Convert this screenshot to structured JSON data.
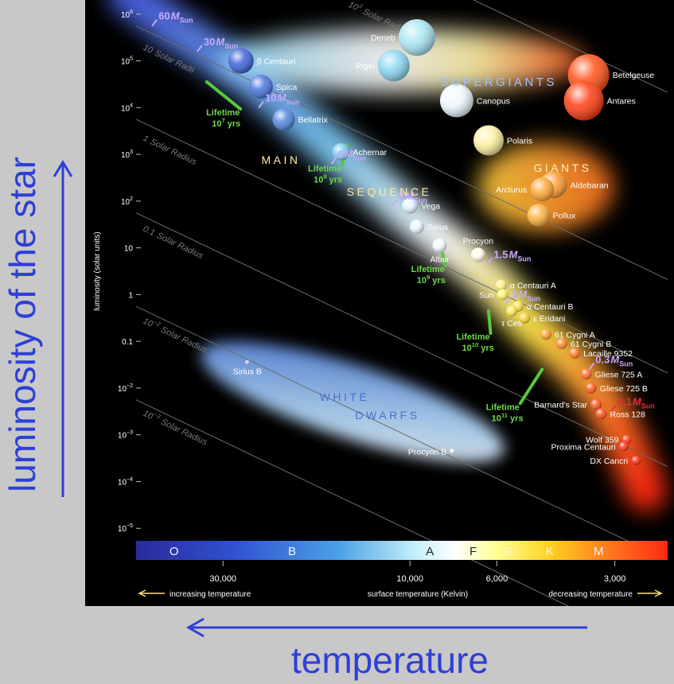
{
  "captions": {
    "y": "luminosity of the star",
    "x": "temperature"
  },
  "axis": {
    "ylabel": "luminosity (solar units)",
    "xlabel": "surface temperature (Kelvin)",
    "x_left_note": "increasing temperature",
    "x_right_note": "decreasing temperature",
    "y_ticks": [
      {
        "mant": "10",
        "exp": "6",
        "logL": 6
      },
      {
        "mant": "10",
        "exp": "5",
        "logL": 5
      },
      {
        "mant": "10",
        "exp": "4",
        "logL": 4
      },
      {
        "mant": "10",
        "exp": "3",
        "logL": 3
      },
      {
        "mant": "10",
        "exp": "2",
        "logL": 2
      },
      {
        "mant": "10",
        "exp": "",
        "logL": 1
      },
      {
        "mant": "1",
        "exp": "",
        "logL": 0
      },
      {
        "mant": "0.1",
        "exp": "",
        "logL": -1
      },
      {
        "mant": "10",
        "exp": "−2",
        "logL": -2
      },
      {
        "mant": "10",
        "exp": "−3",
        "logL": -3
      },
      {
        "mant": "10",
        "exp": "−4",
        "logL": -4
      },
      {
        "mant": "10",
        "exp": "−5",
        "logL": -5
      }
    ],
    "x_ticks": [
      {
        "label": "30,000",
        "T": 30000
      },
      {
        "label": "10,000",
        "T": 10000
      },
      {
        "label": "6,000",
        "T": 6000
      },
      {
        "label": "3,000",
        "T": 3000
      }
    ],
    "spectral": [
      {
        "label": "O",
        "T": 40000
      },
      {
        "label": "B",
        "T": 20000
      },
      {
        "label": "A",
        "T": 8900
      },
      {
        "label": "F",
        "T": 6900
      },
      {
        "label": "G",
        "T": 5600
      },
      {
        "label": "K",
        "T": 4400
      },
      {
        "label": "M",
        "T": 3300
      }
    ]
  },
  "regions": {
    "supergiants": "SUPERGIANTS",
    "giants": "GIANTS",
    "main": "MAIN",
    "sequence": "SEQUENCE",
    "white": "WHITE",
    "dwarfs": "DWARFS"
  },
  "radius_lines": [
    {
      "mant": "10",
      "exp": "3",
      "word": "Solar Radii",
      "logR": 3
    },
    {
      "mant": "10",
      "exp": "",
      "word": "Solar Radii",
      "logR": 1
    },
    {
      "mant": "1",
      "exp": "",
      "word": "Solar Radius",
      "logR": 0
    },
    {
      "mant": "0.1",
      "exp": "",
      "word": "Solar Radius",
      "logR": -1
    },
    {
      "mant": "10",
      "exp": "−2",
      "word": "Solar Radius",
      "logR": -2
    },
    {
      "mant": "10",
      "exp": "−3",
      "word": "Solar Radius",
      "logR": -3
    }
  ],
  "mass_labels": [
    {
      "value": "60",
      "T": 43000,
      "logL": 5.95
    },
    {
      "value": "30",
      "T": 33000,
      "logL": 5.4
    },
    {
      "value": "10",
      "T": 23000,
      "logL": 4.2
    },
    {
      "value": "6",
      "T": 15000,
      "logL": 3.0
    },
    {
      "value": "3",
      "T": 10500,
      "logL": 2.1
    },
    {
      "value": "1.5",
      "T": 6000,
      "logL": 0.85
    },
    {
      "value": "1",
      "T": 5400,
      "logL": 0.0
    },
    {
      "value": "0.3",
      "T": 3300,
      "logL": -1.4
    },
    {
      "value": "0.1",
      "T": 2900,
      "logL": -2.3
    }
  ],
  "mass_unit": "M",
  "mass_sub": "Sun",
  "lifetimes": [
    {
      "word": "Lifetime",
      "mant": "10",
      "exp": "7",
      "unit": "yrs",
      "T": 30000,
      "logL": 3.8
    },
    {
      "word": "Lifetime",
      "mant": "10",
      "exp": "8",
      "unit": "yrs",
      "T": 16500,
      "logL": 2.6
    },
    {
      "word": "Lifetime",
      "mant": "10",
      "exp": "9",
      "unit": "yrs",
      "T": 9000,
      "logL": 0.45
    },
    {
      "word": "Lifetime",
      "mant": "10",
      "exp": "10",
      "unit": "yrs",
      "T": 6900,
      "logL": -1.0
    },
    {
      "word": "Lifetime",
      "mant": "10",
      "exp": "11",
      "unit": "yrs",
      "T": 5800,
      "logL": -2.5
    }
  ],
  "stars": [
    {
      "name": "β Centauri",
      "T": 27000,
      "logL": 5.0,
      "r": 16,
      "color": "#3d62d8",
      "side": "right"
    },
    {
      "name": "Spica",
      "T": 24000,
      "logL": 4.45,
      "r": 15,
      "color": "#4a74dc",
      "side": "right"
    },
    {
      "name": "Bellatrix",
      "T": 21000,
      "logL": 3.75,
      "r": 14,
      "color": "#5386de",
      "side": "right"
    },
    {
      "name": "Deneb",
      "T": 9600,
      "logL": 5.5,
      "r": 23,
      "color": "#a8e6f4",
      "side": "left"
    },
    {
      "name": "Rigel",
      "T": 11000,
      "logL": 4.9,
      "r": 20,
      "color": "#8ad6f0",
      "side": "left"
    },
    {
      "name": "Achernar",
      "T": 15000,
      "logL": 3.05,
      "r": 11,
      "color": "#7ccbec",
      "side": "right"
    },
    {
      "name": "Canopus",
      "T": 7600,
      "logL": 4.15,
      "r": 21,
      "color": "#eef8ff",
      "side": "right"
    },
    {
      "name": "Polaris",
      "T": 6300,
      "logL": 3.3,
      "r": 19,
      "color": "#fff0a0",
      "side": "right"
    },
    {
      "name": "Betelgeuse",
      "T": 3500,
      "logL": 4.7,
      "r": 26,
      "color": "#ff5018",
      "side": "right"
    },
    {
      "name": "Antares",
      "T": 3600,
      "logL": 4.15,
      "r": 25,
      "color": "#ff3c10",
      "side": "right"
    },
    {
      "name": "Aldebaran",
      "T": 4300,
      "logL": 2.35,
      "r": 17,
      "color": "#ff9a30",
      "side": "right"
    },
    {
      "name": "Arcturus",
      "T": 4600,
      "logL": 2.25,
      "r": 15,
      "color": "#ffa738",
      "side": "left"
    },
    {
      "name": "Pollux",
      "T": 4700,
      "logL": 1.7,
      "r": 14,
      "color": "#ffb440",
      "side": "right"
    },
    {
      "name": "Vega",
      "T": 10000,
      "logL": 1.9,
      "r": 10,
      "color": "#dff4ff",
      "side": "right"
    },
    {
      "name": "Sirius",
      "T": 9600,
      "logL": 1.45,
      "r": 9,
      "color": "#e8f6ff",
      "side": "right"
    },
    {
      "name": "Altair",
      "T": 8400,
      "logL": 1.05,
      "r": 9,
      "color": "#f0f8ff",
      "side": "below"
    },
    {
      "name": "Procyon",
      "T": 6700,
      "logL": 0.85,
      "r": 9,
      "color": "#fffbe6",
      "side": "above"
    },
    {
      "name": "α Centauri A",
      "T": 5850,
      "logL": 0.2,
      "r": 7,
      "color": "#fff080",
      "side": "right"
    },
    {
      "name": "Sun",
      "T": 5800,
      "logL": 0.0,
      "r": 7,
      "color": "#fff36a",
      "side": "left"
    },
    {
      "name": "α Centauri B",
      "T": 5300,
      "logL": -0.25,
      "r": 7,
      "color": "#ffdd40",
      "side": "right"
    },
    {
      "name": "τ Ceti",
      "T": 5500,
      "logL": -0.35,
      "r": 7,
      "color": "#ffe64c",
      "side": "below"
    },
    {
      "name": "ε Eridani",
      "T": 5100,
      "logL": -0.5,
      "r": 7,
      "color": "#ffcc30",
      "side": "right"
    },
    {
      "name": "61 Cygni A",
      "T": 4500,
      "logL": -0.85,
      "r": 7,
      "color": "#ffa028",
      "side": "right"
    },
    {
      "name": "61 Cygni B",
      "T": 4100,
      "logL": -1.05,
      "r": 7,
      "color": "#ff8a24",
      "side": "right"
    },
    {
      "name": "Lacaille 9352",
      "T": 3800,
      "logL": -1.25,
      "r": 7,
      "color": "#ff7a20",
      "side": "right"
    },
    {
      "name": "Gliese 725 A",
      "T": 3550,
      "logL": -1.7,
      "r": 7,
      "color": "#ff6a1c",
      "side": "right"
    },
    {
      "name": "Gliese 725 B",
      "T": 3450,
      "logL": -2.0,
      "r": 7,
      "color": "#ff5c18",
      "side": "right"
    },
    {
      "name": "Barnard's Star",
      "T": 3350,
      "logL": -2.35,
      "r": 7,
      "color": "#ff5218",
      "side": "left"
    },
    {
      "name": "Ross 128",
      "T": 3250,
      "logL": -2.55,
      "r": 7,
      "color": "#ff4a16",
      "side": "right"
    },
    {
      "name": "Wolf 359",
      "T": 2800,
      "logL": -3.1,
      "r": 6,
      "color": "#ff3a14",
      "side": "left"
    },
    {
      "name": "Proxima Centauri",
      "T": 2850,
      "logL": -3.25,
      "r": 6,
      "color": "#ff3412",
      "side": "left"
    },
    {
      "name": "DX Cancri",
      "T": 2650,
      "logL": -3.55,
      "r": 6,
      "color": "#ff2c12",
      "side": "left"
    },
    {
      "name": "Sirius B",
      "T": 26000,
      "logL": -1.45,
      "r": 3,
      "color": "#aac4ff",
      "side": "below"
    },
    {
      "name": "Procyon B",
      "T": 7800,
      "logL": -3.35,
      "r": 3,
      "color": "#ffffff",
      "side": "left"
    }
  ]
}
